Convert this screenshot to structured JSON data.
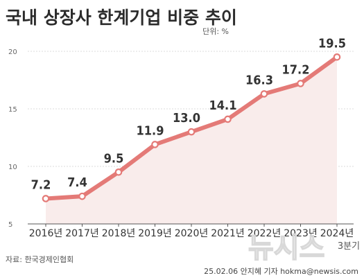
{
  "title": "국내 상장사 한계기업 비중 추이",
  "unit": "단위: %",
  "x_note": "3분기",
  "source": "자료: 한국경제인협회",
  "credit": "25.02.06 안지혜 기자 hokma@newsis.com",
  "watermark": "뉴시스",
  "colors": {
    "line": "#e47a77",
    "area": "#f9eceb",
    "grid": "#cfcfcf",
    "axis": "#555555"
  },
  "chart_data": {
    "type": "line",
    "title": "국내 상장사 한계기업 비중 추이",
    "categories": [
      "2016년",
      "2017년",
      "2018년",
      "2019년",
      "2020년",
      "2021년",
      "2022년",
      "2023년",
      "2024년"
    ],
    "values": [
      7.2,
      7.4,
      9.5,
      11.9,
      13.0,
      14.1,
      16.3,
      17.2,
      19.5
    ],
    "value_labels": [
      "7.2",
      "7.4",
      "9.5",
      "11.9",
      "13.0",
      "14.1",
      "16.3",
      "17.2",
      "19.5"
    ],
    "ylim": [
      5,
      20
    ],
    "yticks": [
      "5",
      "10",
      "15",
      "20"
    ],
    "grid": true,
    "area_fill": true
  }
}
